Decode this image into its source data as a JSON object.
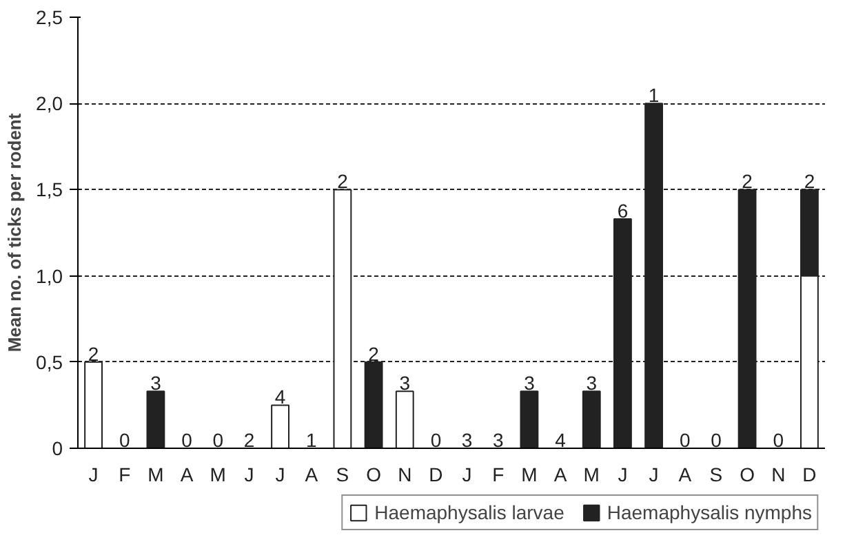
{
  "chart_data": {
    "type": "bar",
    "stacked": true,
    "ylabel": "Mean no. of ticks per rodent",
    "categories": [
      "J",
      "F",
      "M",
      "A",
      "M",
      "J",
      "J",
      "A",
      "S",
      "O",
      "N",
      "D",
      "J",
      "F",
      "M",
      "A",
      "M",
      "J",
      "J",
      "A",
      "S",
      "O",
      "N",
      "D"
    ],
    "series": [
      {
        "name": "Haemaphysalis larvae",
        "color": "#ffffff",
        "values": [
          0.5,
          0,
          0,
          0,
          0,
          0,
          0.25,
          0,
          1.5,
          0,
          0.33,
          0,
          0,
          0,
          0,
          0,
          0,
          0,
          0,
          0,
          0,
          0,
          0,
          1.0
        ]
      },
      {
        "name": "Haemaphysalis nymphs",
        "color": "#222222",
        "values": [
          0,
          0,
          0.33,
          0,
          0,
          0,
          0,
          0,
          0,
          0.5,
          0,
          0,
          0,
          0,
          0.33,
          0,
          0.33,
          1.33,
          2.0,
          0,
          0,
          1.5,
          0,
          0.5
        ]
      }
    ],
    "annotations": [
      "2",
      "0",
      "3",
      "0",
      "0",
      "2",
      "4",
      "1",
      "2",
      "2",
      "3",
      "0",
      "3",
      "3",
      "3",
      "4",
      "3",
      "6",
      "1",
      "0",
      "0",
      "2",
      "0",
      "2"
    ],
    "ylim": [
      0,
      2.5
    ],
    "yticks": [
      {
        "value": 0,
        "label": "0"
      },
      {
        "value": 0.5,
        "label": "0,5"
      },
      {
        "value": 1.0,
        "label": "1,0"
      },
      {
        "value": 1.5,
        "label": "1,5"
      },
      {
        "value": 2.0,
        "label": "2,0"
      },
      {
        "value": 2.5,
        "label": "2,5"
      }
    ],
    "grid": "y",
    "legend": "bottom"
  }
}
